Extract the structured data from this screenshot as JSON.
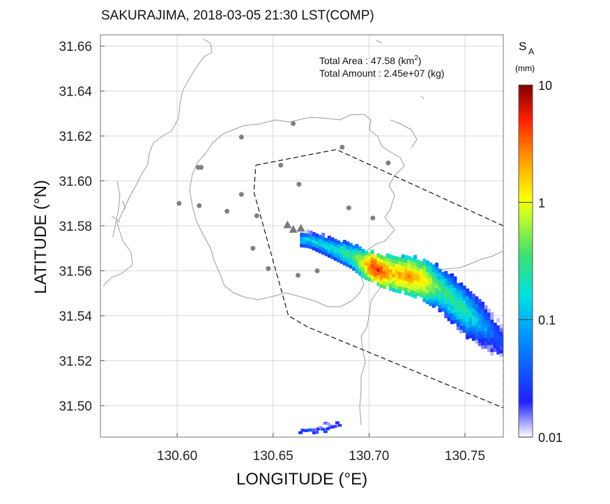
{
  "title": "SAKURAJIMA, 2018-03-05 21:30 LST(COMP)",
  "info": {
    "total_area_label": "Total Area     : 47.58 (km",
    "total_area_sup": "2",
    "total_area_tail": ")",
    "total_amount_label": "Total Amount : 2.45e+07 (kg)"
  },
  "colorbar": {
    "symbol": "S",
    "subscript": "A",
    "unit": "(mm)",
    "ticks": [
      "10",
      "1",
      "0.1",
      "0.01"
    ],
    "scale": "log",
    "range": [
      0.01,
      10
    ]
  },
  "chart_data": {
    "type": "heatmap",
    "title": "SAKURAJIMA, 2018-03-05 21:30 LST(COMP)",
    "xlabel": "LONGITUDE (°E)",
    "ylabel": "LATITUDE (°N)",
    "xlim": [
      130.56,
      130.77
    ],
    "ylim": [
      31.486,
      31.665
    ],
    "x_ticks": [
      "130.60",
      "130.65",
      "130.70",
      "130.75"
    ],
    "x_tick_values": [
      130.6,
      130.65,
      130.7,
      130.75
    ],
    "y_ticks": [
      "31.66",
      "31.64",
      "31.62",
      "31.60",
      "31.58",
      "31.56",
      "31.54",
      "31.52",
      "31.50"
    ],
    "y_tick_values": [
      31.66,
      31.64,
      31.62,
      31.6,
      31.58,
      31.56,
      31.54,
      31.52,
      31.5
    ],
    "grid": true,
    "vents": [
      [
        130.6575,
        31.5805
      ],
      [
        130.6605,
        31.5785
      ],
      [
        130.6645,
        31.579
      ]
    ],
    "stations": [
      [
        130.601,
        31.59
      ],
      [
        130.611,
        31.606
      ],
      [
        130.6125,
        31.606
      ],
      [
        130.6115,
        31.589
      ],
      [
        130.626,
        31.5865
      ],
      [
        130.6335,
        31.6195
      ],
      [
        130.6335,
        31.594
      ],
      [
        130.6415,
        31.5845
      ],
      [
        130.6395,
        31.57
      ],
      [
        130.6475,
        31.561
      ],
      [
        130.654,
        31.607
      ],
      [
        130.6605,
        31.6255
      ],
      [
        130.6635,
        31.5985
      ],
      [
        130.663,
        31.558
      ],
      [
        130.673,
        31.56
      ],
      [
        130.686,
        31.615
      ],
      [
        130.6895,
        31.588
      ],
      [
        130.702,
        31.5835
      ],
      [
        130.71,
        31.608
      ]
    ],
    "forecast_area": [
      [
        130.641,
        31.607
      ],
      [
        130.683,
        31.614
      ],
      [
        130.77,
        31.58
      ],
      [
        130.77,
        31.499
      ],
      [
        130.668,
        31.535
      ],
      [
        130.658,
        31.54
      ],
      [
        130.64,
        31.595
      ],
      [
        130.641,
        31.607
      ]
    ],
    "deposit_axis": [
      [
        130.668,
        31.573,
        0.15
      ],
      [
        130.678,
        31.57,
        0.2
      ],
      [
        130.69,
        31.566,
        0.35
      ],
      [
        130.697,
        31.562,
        1.5
      ],
      [
        130.701,
        31.561,
        6.0
      ],
      [
        130.706,
        31.559,
        4.0
      ],
      [
        130.712,
        31.558,
        2.0
      ],
      [
        130.72,
        31.557,
        2.5
      ],
      [
        130.728,
        31.555,
        1.5
      ],
      [
        130.735,
        31.552,
        0.4
      ],
      [
        130.742,
        31.547,
        0.3
      ],
      [
        130.75,
        31.541,
        0.25
      ],
      [
        130.758,
        31.536,
        0.1
      ],
      [
        130.765,
        31.53,
        0.04
      ],
      [
        130.77,
        31.527,
        0.03
      ]
    ],
    "small_patch": [
      [
        130.668,
        31.488,
        0.03
      ],
      [
        130.675,
        31.489,
        0.02
      ],
      [
        130.68,
        31.491,
        0.015
      ]
    ]
  }
}
